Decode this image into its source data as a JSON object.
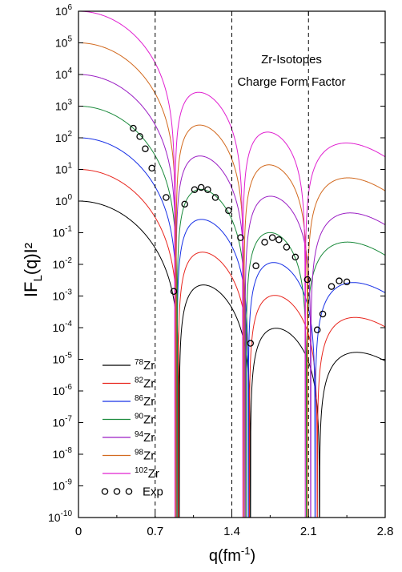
{
  "chart_data": {
    "type": "line",
    "title_lines": [
      "Zr-Isotopes",
      "Charge Form Factor"
    ],
    "xlabel": {
      "main": "q(fm",
      "sup": "-1",
      "end": ")"
    },
    "ylabel": {
      "main": "IF",
      "sub": "L",
      "end": "(q)I²"
    },
    "xlim": [
      0,
      2.8
    ],
    "ylim_log10": [
      -10,
      6
    ],
    "x_scale": "linear",
    "y_scale": "log",
    "x_ticks": [
      "0",
      "0.7",
      "1.4",
      "2.1",
      "2.8"
    ],
    "x_tick_values": [
      0,
      0.7,
      1.4,
      2.1,
      2.8
    ],
    "y_tick_exponents": [
      -10,
      -9,
      -8,
      -7,
      -6,
      -5,
      -4,
      -3,
      -2,
      -1,
      0,
      1,
      2,
      3,
      4,
      5,
      6
    ],
    "dashed_vlines": [
      0.7,
      1.4,
      2.1
    ],
    "grid": false,
    "legend_position": "bottom-left",
    "series": [
      {
        "name": "Zr",
        "mass": "78",
        "color": "#000000",
        "scale_log10": 0,
        "zeros": [
          0.92,
          1.57,
          2.2
        ],
        "peak_amp": 0.32
      },
      {
        "name": "Zr",
        "mass": "82",
        "color": "#e8261e",
        "scale_log10": 1,
        "zeros": [
          0.91,
          1.56,
          2.18
        ],
        "peak_amp": 0.3
      },
      {
        "name": "Zr",
        "mass": "86",
        "color": "#1730e6",
        "scale_log10": 2,
        "zeros": [
          0.9,
          1.55,
          2.16
        ],
        "peak_amp": 0.32
      },
      {
        "name": "Zr",
        "mass": "90",
        "color": "#1b8a3c",
        "scale_log10": 3,
        "zeros": [
          0.9,
          1.53,
          2.08
        ],
        "peak_amp": 0.31
      },
      {
        "name": "Zr",
        "mass": "94",
        "color": "#9b1fc4",
        "scale_log10": 4,
        "zeros": [
          0.89,
          1.52,
          2.12
        ],
        "peak_amp": 0.3
      },
      {
        "name": "Zr",
        "mass": "98",
        "color": "#d2691e",
        "scale_log10": 5,
        "zeros": [
          0.89,
          1.51,
          2.09
        ],
        "peak_amp": 0.3
      },
      {
        "name": "Zr",
        "mass": "102",
        "color": "#e020d0",
        "scale_log10": 6,
        "zeros": [
          0.88,
          1.5,
          2.07
        ],
        "peak_amp": 0.3
      }
    ],
    "exp_label": "Exp",
    "exp_points": [
      {
        "x": 0.5,
        "y": 200
      },
      {
        "x": 0.56,
        "y": 110
      },
      {
        "x": 0.61,
        "y": 45
      },
      {
        "x": 0.67,
        "y": 11
      },
      {
        "x": 0.8,
        "y": 1.3
      },
      {
        "x": 0.97,
        "y": 0.8
      },
      {
        "x": 1.06,
        "y": 2.3
      },
      {
        "x": 1.12,
        "y": 2.7
      },
      {
        "x": 1.18,
        "y": 2.3
      },
      {
        "x": 1.25,
        "y": 1.3
      },
      {
        "x": 1.37,
        "y": 0.5
      },
      {
        "x": 1.48,
        "y": 0.07
      },
      {
        "x": 1.62,
        "y": 0.009
      },
      {
        "x": 1.7,
        "y": 0.05
      },
      {
        "x": 1.77,
        "y": 0.07
      },
      {
        "x": 1.83,
        "y": 0.06
      },
      {
        "x": 1.9,
        "y": 0.035
      },
      {
        "x": 1.98,
        "y": 0.017
      },
      {
        "x": 2.09,
        "y": 0.0033
      },
      {
        "x": 0.87,
        "y": 0.0014
      },
      {
        "x": 1.57,
        "y": 3.2e-05
      },
      {
        "x": 2.18,
        "y": 8.5e-05
      },
      {
        "x": 2.23,
        "y": 0.00027
      },
      {
        "x": 2.31,
        "y": 0.002
      },
      {
        "x": 2.38,
        "y": 0.003
      },
      {
        "x": 2.45,
        "y": 0.0028
      }
    ]
  }
}
